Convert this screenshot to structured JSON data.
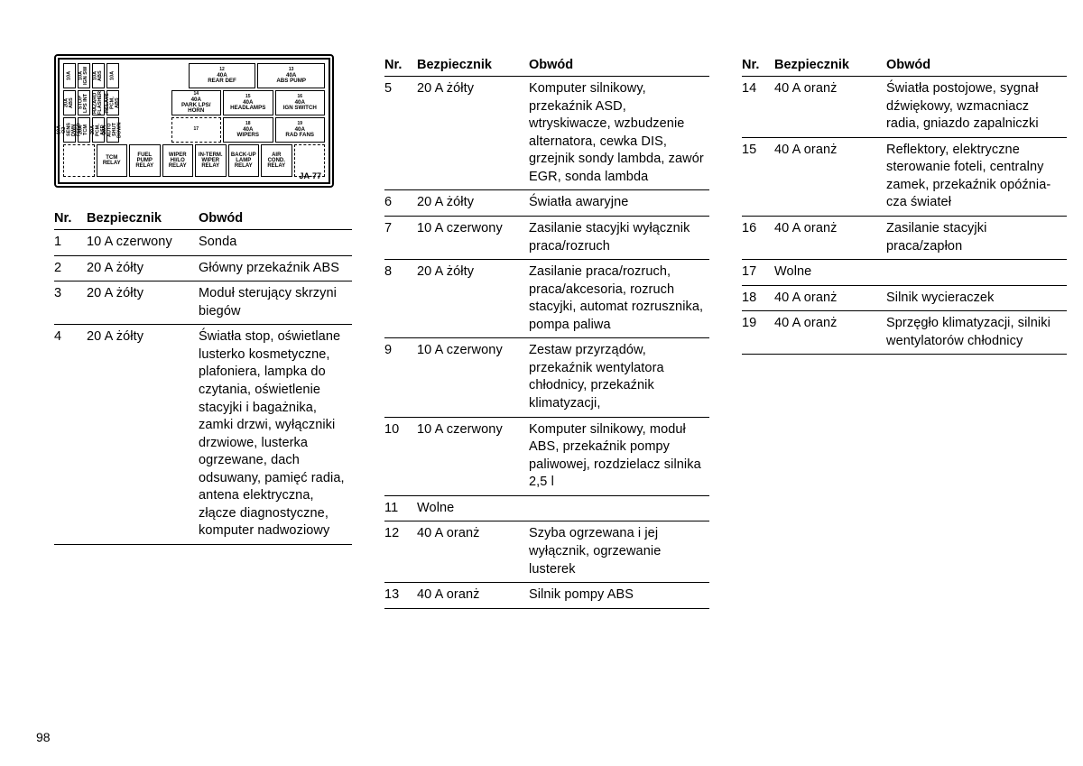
{
  "page_number": "98",
  "diagram_id": "JA-77",
  "headers": {
    "nr": "Nr.",
    "bez": "Bezpiecznik",
    "obw": "Obwód"
  },
  "diagram": {
    "row1_left": [
      {
        "t": "10A",
        "s": ""
      },
      {
        "t": "10A",
        "s": "IGN SW"
      },
      {
        "t": "10A",
        "s": "ABS"
      },
      {
        "t": "10A",
        "s": ""
      }
    ],
    "row1_right": [
      {
        "n": "12",
        "t": "40A",
        "s": "REAR DEF"
      },
      {
        "n": "13",
        "t": "40A",
        "s": "ABS PUMP"
      }
    ],
    "row2_left": [
      {
        "t": "20A",
        "s": "ABS"
      },
      {
        "t": "",
        "s": "STOP LPS INT"
      },
      {
        "t": "",
        "s": "HAZARD FLASHER"
      },
      {
        "t": "",
        "s": "RELAYS PCM, ABS"
      }
    ],
    "row2_right": [
      {
        "n": "14",
        "t": "40A",
        "s": "PARK LPS/ HORN"
      },
      {
        "n": "15",
        "t": "40A",
        "s": "HEADLAMPS"
      },
      {
        "n": "16",
        "t": "40A",
        "s": "IGN SWITCH"
      }
    ],
    "row3_left": [
      {
        "t": "10A",
        "s": "O2 SENS DWN FEED"
      },
      {
        "t": "20A",
        "s": "TCM"
      },
      {
        "t": "20A",
        "s": "PCM, ASD"
      },
      {
        "t": "20A",
        "s": "AUTO SHUT DOWN"
      }
    ],
    "row3_right": [
      {
        "n": "17",
        "t": "",
        "s": ""
      },
      {
        "n": "18",
        "t": "40A",
        "s": "WIPERS"
      },
      {
        "n": "19",
        "t": "40A",
        "s": "RAD FANS"
      }
    ],
    "row4": [
      {
        "t": "",
        "s": ""
      },
      {
        "t": "TCM",
        "s": "RELAY"
      },
      {
        "t": "FUEL PUMP",
        "s": "RELAY"
      },
      {
        "t": "WIPER HI/LO",
        "s": "RELAY"
      },
      {
        "t": "IN-TERM. WIPER",
        "s": "RELAY"
      },
      {
        "t": "BACK-UP LAMP",
        "s": "RELAY"
      },
      {
        "t": "AIR COND.",
        "s": "RELAY"
      },
      {
        "t": "",
        "s": ""
      }
    ]
  },
  "col1": [
    {
      "nr": "1",
      "bez": "10 A czer­wony",
      "obw": "Sonda"
    },
    {
      "nr": "2",
      "bez": "20 A żółty",
      "obw": "Główny przekaźnik ABS"
    },
    {
      "nr": "3",
      "bez": "20 A żółty",
      "obw": "Moduł sterujący skrzyni biegów"
    },
    {
      "nr": "4",
      "bez": "20 A żółty",
      "obw": "Światła stop, oświet­lane lusterko kosme­tyczne, plafoniera, lampka do czytania, oświetlenie stacyjki i bagażnika, zamki drzwi, wyłączniki drzwiowe, lusterka ogrzewane, dach odsuwany, pamięć radia, antena elek­tryczna, złącze diag­nostyczne, komputer nadwoziowy"
    }
  ],
  "col2": [
    {
      "nr": "5",
      "bez": "20 A żółty",
      "obw": "Komputer silnikowy, przekaźnik ASD, wtryskiwacze, wzbu­dzenie alternatora, cewka DIS, grzejnik sondy lambda, za­wór EGR, sonda lambda"
    },
    {
      "nr": "6",
      "bez": "20 A żółty",
      "obw": "Światła awaryjne"
    },
    {
      "nr": "7",
      "bez": "10 A czer­wony",
      "obw": "Zasilanie stacyjki wy­łącznik praca/rozruch"
    },
    {
      "nr": "8",
      "bez": "20 A żółty",
      "obw": "Zasilanie praca/roz­ruch, praca/akceso­ria, rozruch stacyjki, automat rozrusznika, pompa paliwa"
    },
    {
      "nr": "9",
      "bez": "10 A czer­wony",
      "obw": "Zestaw przyrządów, przekaźnik wentyla­tora chłodnicy, prze­kaźnik klimatyzacji,"
    },
    {
      "nr": "10",
      "bez": "10 A czer­wony",
      "obw": "Komputer silnikowy, moduł ABS, przekaź­nik pompy paliwowej, rozdzielacz silnika 2,5 l"
    },
    {
      "nr": "11",
      "bez": "Wolne",
      "obw": ""
    },
    {
      "nr": "12",
      "bez": "40 A oranż",
      "obw": "Szyba ogrzewana i jej wyłącznik, ogrzewanie lusterek"
    },
    {
      "nr": "13",
      "bez": "40 A oranż",
      "obw": "Silnik pompy ABS"
    }
  ],
  "col3": [
    {
      "nr": "14",
      "bez": "40 A oranż",
      "obw": "Światła postojowe, sygnał dźwiękowy, wzmacniacz radia, gniazdo zapalniczki"
    },
    {
      "nr": "15",
      "bez": "40 A oranż",
      "obw": "Reflektory, elektrycz­ne sterowanie foteli, centralny zamek, przekaźnik opóźnia­cza świateł"
    },
    {
      "nr": "16",
      "bez": "40 A oranż",
      "obw": "Zasilanie stacyjki praca/zapłon"
    },
    {
      "nr": "17",
      "bez": "Wolne",
      "obw": ""
    },
    {
      "nr": "18",
      "bez": "40 A oranż",
      "obw": "Silnik wycieraczek"
    },
    {
      "nr": "19",
      "bez": "40 A oranż",
      "obw": "Sprzęgło klimatyza­cji, silniki wentylato­rów chłodnicy"
    }
  ]
}
